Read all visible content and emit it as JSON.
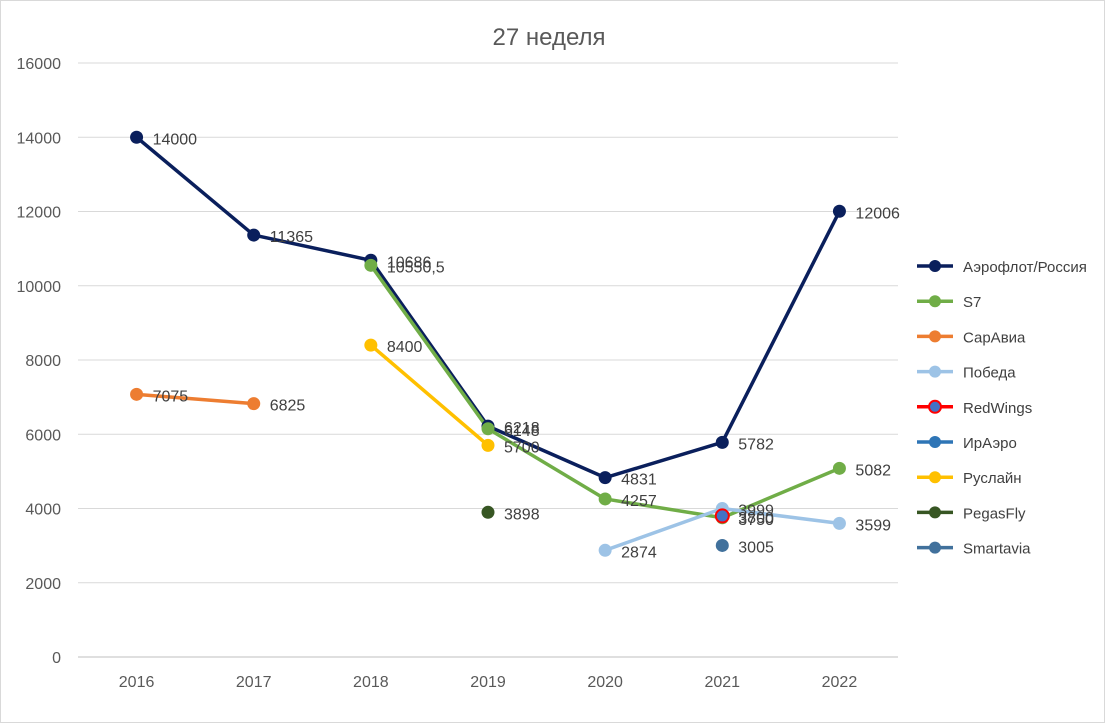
{
  "chart_data": {
    "type": "line",
    "title": "27 неделя",
    "xlabel": "",
    "ylabel": "",
    "categories": [
      "2016",
      "2017",
      "2018",
      "2019",
      "2020",
      "2021",
      "2022"
    ],
    "ylim": [
      0,
      16000
    ],
    "yticks": [
      "0",
      "2000",
      "4000",
      "6000",
      "8000",
      "10000",
      "12000",
      "14000",
      "16000"
    ],
    "grid": true,
    "legend": "right",
    "series": [
      {
        "name": "Аэрофлот/Россия",
        "color": "#0a1f5c",
        "values": [
          14000,
          11365,
          10686,
          6218,
          4831,
          5782,
          12006
        ],
        "labels": [
          "14000",
          "11365",
          "10686",
          "6218",
          "4831",
          "5782",
          "12006"
        ]
      },
      {
        "name": "S7",
        "color": "#70ad47",
        "values": [
          null,
          null,
          10550.5,
          6148,
          4257,
          3750,
          5082
        ],
        "labels": [
          "",
          "",
          "10550,5",
          "6148",
          "4257",
          "3750",
          "5082"
        ]
      },
      {
        "name": "СарАвиа",
        "color": "#ed7d31",
        "values": [
          7075,
          6825,
          null,
          null,
          null,
          null,
          null
        ],
        "labels": [
          "7075",
          "6825",
          "",
          "",
          "",
          "",
          ""
        ]
      },
      {
        "name": "Победа",
        "color": "#9dc3e6",
        "values": [
          null,
          null,
          null,
          null,
          2874,
          3999,
          3599
        ],
        "labels": [
          "",
          "",
          "",
          "",
          "2874",
          "3999",
          "3599"
        ]
      },
      {
        "name": "RedWings",
        "color": "#ff0000",
        "marker_color": "#4472c4",
        "values": [
          null,
          null,
          null,
          null,
          null,
          3800,
          null
        ],
        "labels": [
          "",
          "",
          "",
          "",
          "",
          "3800",
          ""
        ]
      },
      {
        "name": "ИрАэро",
        "color": "#2e75b6",
        "values": [
          null,
          null,
          null,
          null,
          null,
          null,
          null
        ],
        "labels": [
          "",
          "",
          "",
          "",
          "",
          "",
          ""
        ]
      },
      {
        "name": "Руслайн",
        "color": "#ffc000",
        "values": [
          null,
          null,
          8400,
          5700,
          null,
          null,
          null
        ],
        "labels": [
          "",
          "",
          "8400",
          "5700",
          "",
          "",
          ""
        ]
      },
      {
        "name": "PegasFly",
        "color": "#375623",
        "values": [
          null,
          null,
          null,
          3898,
          null,
          null,
          null
        ],
        "labels": [
          "",
          "",
          "",
          "3898",
          "",
          "",
          ""
        ]
      },
      {
        "name": "Smartavia",
        "color": "#41719c",
        "values": [
          null,
          null,
          null,
          null,
          null,
          3005,
          null
        ],
        "labels": [
          "",
          "",
          "",
          "",
          "",
          "3005",
          ""
        ]
      }
    ]
  }
}
